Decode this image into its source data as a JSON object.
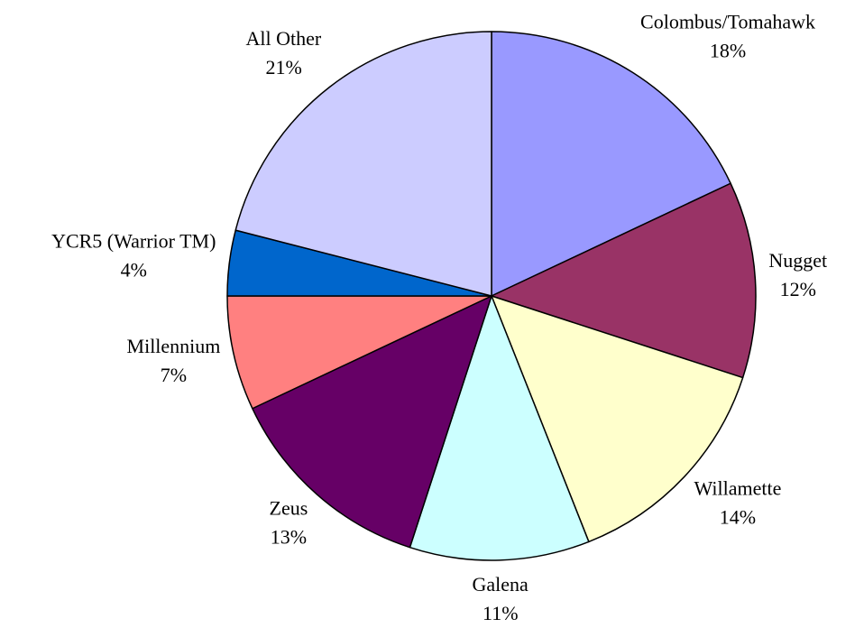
{
  "chart_data": {
    "type": "pie",
    "categories": [
      "Colombus/Tomahawk",
      "Nugget",
      "Willamette",
      "Galena",
      "Zeus",
      "Millennium",
      "YCR5 (Warrior TM)",
      "All Other"
    ],
    "values": [
      18,
      12,
      14,
      11,
      13,
      7,
      4,
      21
    ],
    "value_labels": [
      "18%",
      "12%",
      "14%",
      "11%",
      "13%",
      "7%",
      "4%",
      "21%"
    ],
    "colors": [
      "#9999ff",
      "#993366",
      "#ffffcc",
      "#ccffff",
      "#660066",
      "#ff8080",
      "#0066cc",
      "#ccccff"
    ]
  }
}
